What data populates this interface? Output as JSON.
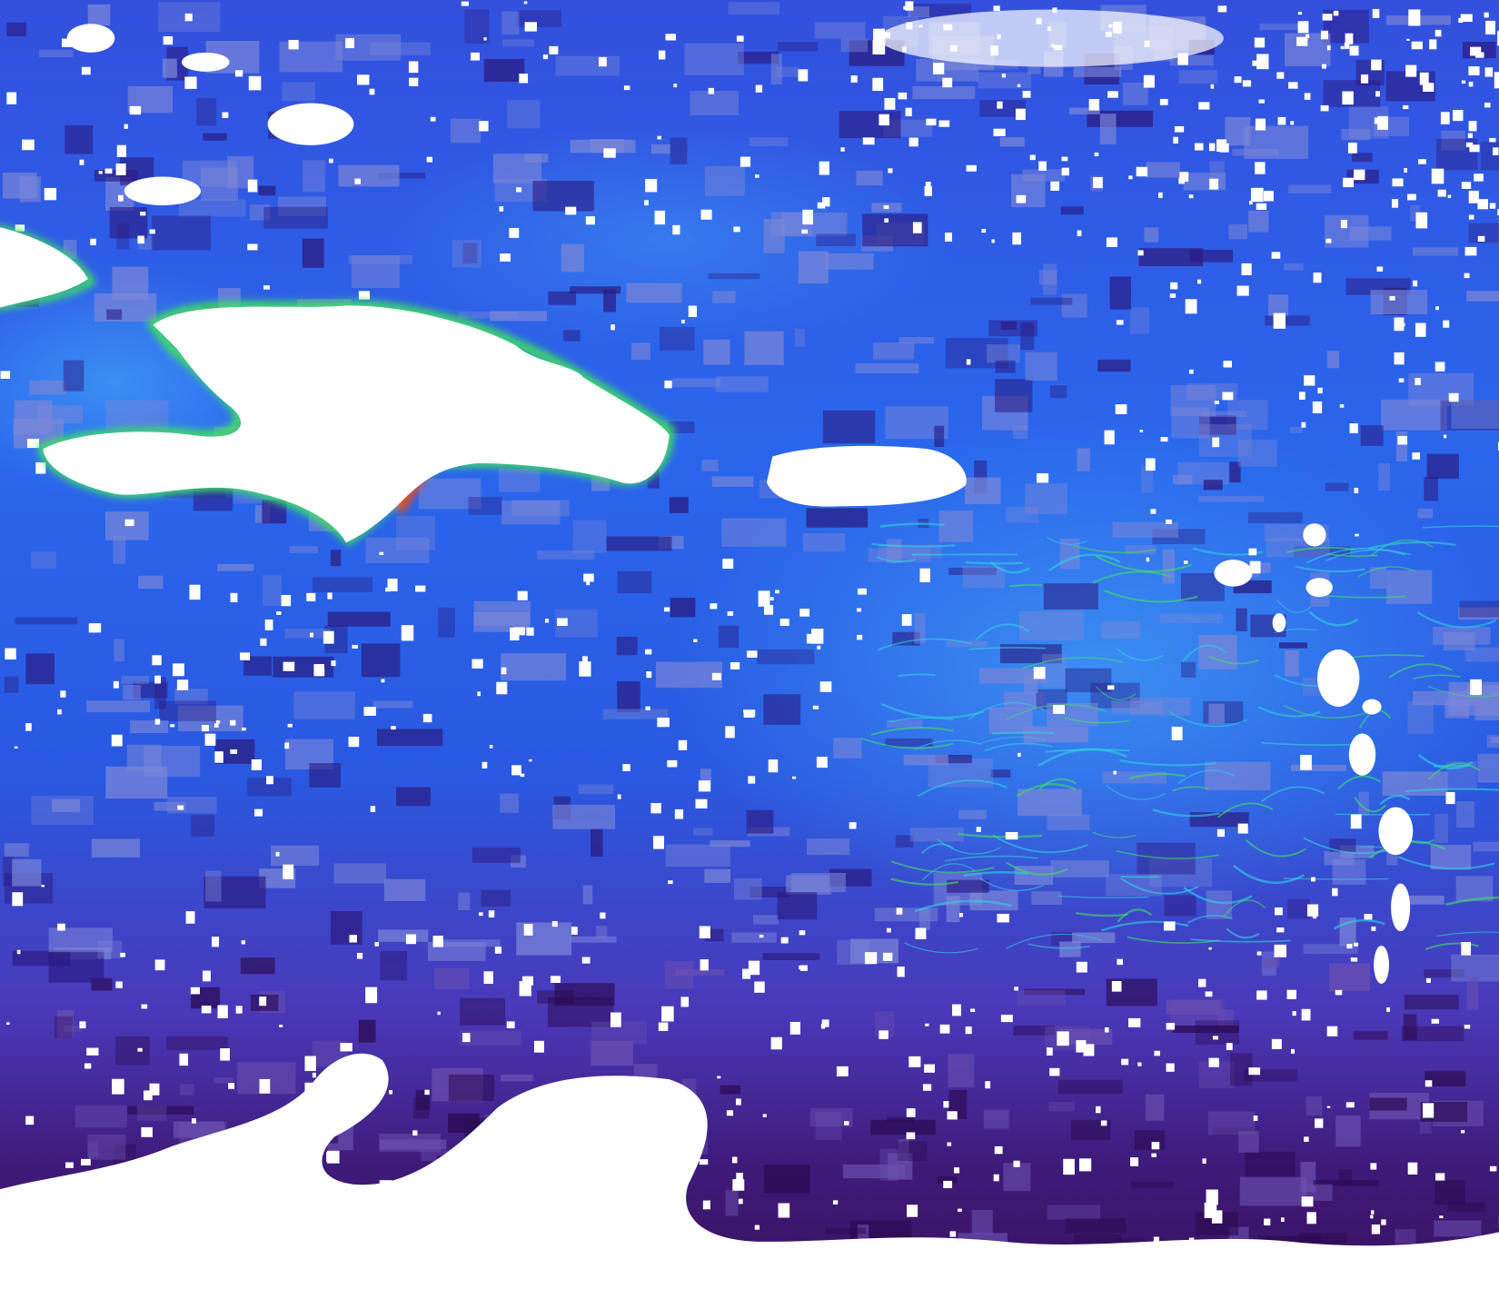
{
  "map": {
    "kind": "satellite ocean-color composite",
    "colors": {
      "ocean_north": "#2f4fe0",
      "ocean_mid": "#2a6ff0",
      "ocean_light": "#3f8ff5",
      "ocean_south": "#4a2aa0",
      "ocean_deep_south": "#3a1060",
      "cloud_gray": "#7a86d8",
      "land_cloud": "#ffffff",
      "coastal_green": "#40e060",
      "coastal_yellow": "#e0e040",
      "coastal_red": "#e05020",
      "cyan_filament": "#30d0e0"
    }
  }
}
